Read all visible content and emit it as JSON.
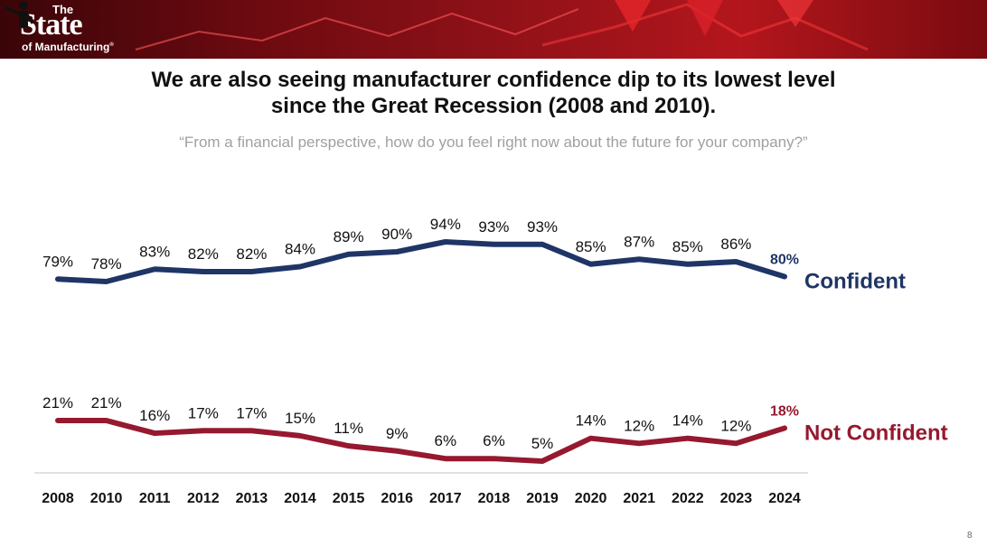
{
  "header": {
    "logo_the": "The",
    "logo_state": "State",
    "logo_mfg": "of Manufacturing",
    "logo_tm": "®"
  },
  "headline": {
    "line1": "We are also seeing manufacturer confidence dip to its lowest level",
    "line2": "since the Great Recession (2008 and 2010)."
  },
  "question": "“From a financial perspective, how do you feel right now about the future for your company?”",
  "page_number": "8",
  "colors": {
    "confident": "#1f3566",
    "not_confident": "#96192f",
    "label": "#111111",
    "axis": "#d9d9d9"
  },
  "chart_data": {
    "type": "line",
    "title": "",
    "xlabel": "",
    "ylabel": "",
    "ylim": [
      0,
      100
    ],
    "grid": false,
    "legend": "inline-right",
    "categories": [
      "2008",
      "2010",
      "2011",
      "2012",
      "2013",
      "2014",
      "2015",
      "2016",
      "2017",
      "2018",
      "2019",
      "2020",
      "2021",
      "2022",
      "2023",
      "2024"
    ],
    "series": [
      {
        "name": "Confident",
        "values": [
          79,
          78,
          83,
          82,
          82,
          84,
          89,
          90,
          94,
          93,
          93,
          85,
          87,
          85,
          86,
          80
        ],
        "labels": [
          "79%",
          "78%",
          "83%",
          "82%",
          "82%",
          "84%",
          "89%",
          "90%",
          "94%",
          "93%",
          "93%",
          "85%",
          "87%",
          "85%",
          "86%",
          "80%"
        ],
        "color": "#1f3566"
      },
      {
        "name": "Not Confident",
        "values": [
          21,
          21,
          16,
          17,
          17,
          15,
          11,
          9,
          6,
          6,
          5,
          14,
          12,
          14,
          12,
          18
        ],
        "labels": [
          "21%",
          "21%",
          "16%",
          "17%",
          "17%",
          "15%",
          "11%",
          "9%",
          "6%",
          "6%",
          "5%",
          "14%",
          "12%",
          "14%",
          "12%",
          "18%"
        ],
        "color": "#96192f"
      }
    ]
  }
}
